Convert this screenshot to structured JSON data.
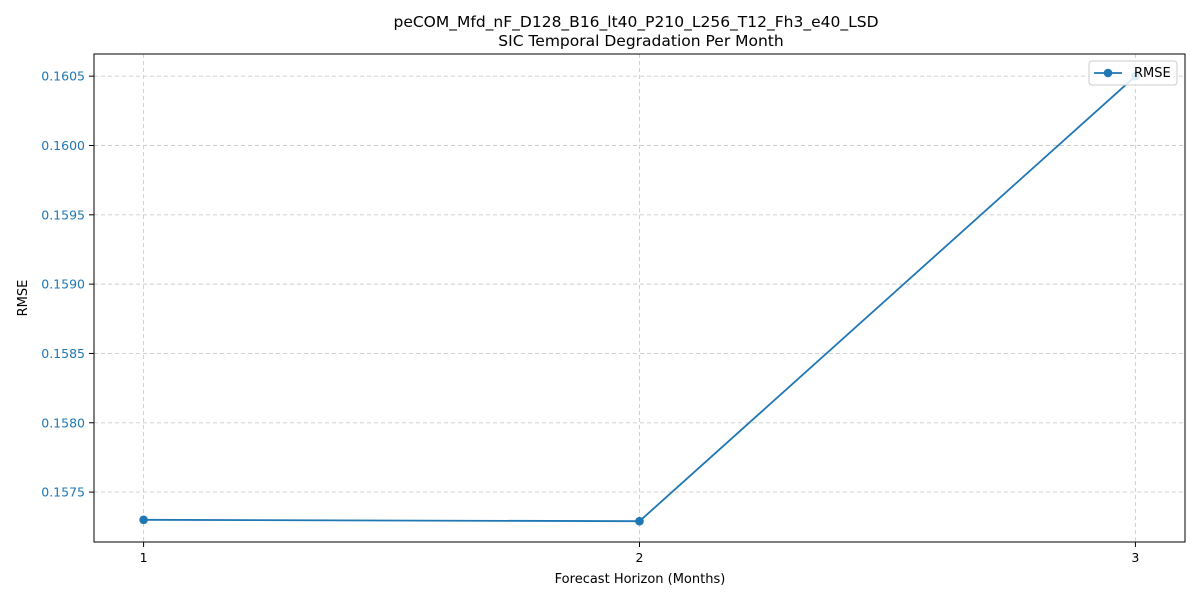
{
  "chart_data": {
    "type": "line",
    "title": "peCOM_Mfd_nF_D128_B16_lt40_P210_L256_T12_Fh3_e40_LSD",
    "subtitle": "SIC Temporal Degradation Per Month",
    "xlabel": "Forecast Horizon (Months)",
    "ylabel": "RMSE",
    "x": [
      1,
      2,
      3
    ],
    "x_ticks": [
      "1",
      "2",
      "3"
    ],
    "xlim": [
      0.9,
      3.1
    ],
    "y_ticks": [
      "0.1575",
      "0.1580",
      "0.1585",
      "0.1590",
      "0.1595",
      "0.1600",
      "0.1605"
    ],
    "y_tick_values": [
      0.1575,
      0.158,
      0.1585,
      0.159,
      0.1595,
      0.16,
      0.1605
    ],
    "ylim": [
      0.15714,
      0.16066
    ],
    "grid": true,
    "legend_position": "top-right",
    "series": [
      {
        "name": "RMSE",
        "values": [
          0.1573,
          0.15729,
          0.1605
        ],
        "color": "#1f77b4",
        "marker": "circle"
      }
    ],
    "y_tick_color": "#1f77b4"
  }
}
